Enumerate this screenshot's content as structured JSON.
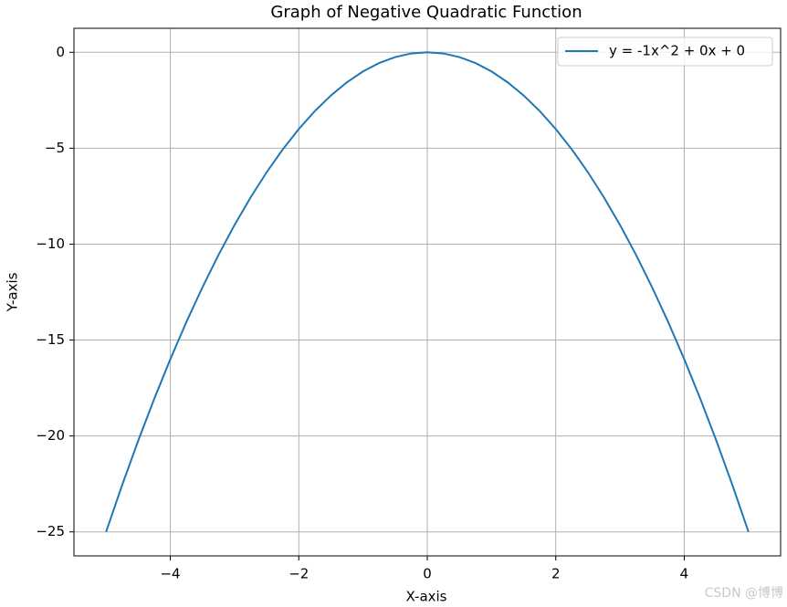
{
  "chart_data": {
    "type": "line",
    "title": "Graph of Negative Quadratic Function",
    "x_label": "X-axis",
    "y_label": "Y-axis",
    "x": [
      -5,
      -4.75,
      -4.5,
      -4.25,
      -4,
      -3.75,
      -3.5,
      -3.25,
      -3,
      -2.75,
      -2.5,
      -2.25,
      -2,
      -1.75,
      -1.5,
      -1.25,
      -1,
      -0.75,
      -0.5,
      -0.25,
      0,
      0.25,
      0.5,
      0.75,
      1,
      1.25,
      1.5,
      1.75,
      2,
      2.25,
      2.5,
      2.75,
      3,
      3.25,
      3.5,
      3.75,
      4,
      4.25,
      4.5,
      4.75,
      5
    ],
    "series": [
      {
        "name": "y = -1x^2 + 0x + 0",
        "color": "#1f77b4",
        "values": [
          -25,
          -22.5625,
          -20.25,
          -18.0625,
          -16,
          -14.0625,
          -12.25,
          -10.5625,
          -9,
          -7.5625,
          -6.25,
          -5.0625,
          -4,
          -3.0625,
          -2.25,
          -1.5625,
          -1,
          -0.5625,
          -0.25,
          -0.0625,
          0,
          -0.0625,
          -0.25,
          -0.5625,
          -1,
          -1.5625,
          -2.25,
          -3.0625,
          -4,
          -5.0625,
          -6.25,
          -7.5625,
          -9,
          -10.5625,
          -12.25,
          -14.0625,
          -16,
          -18.0625,
          -20.25,
          -22.5625,
          -25
        ]
      }
    ],
    "xlim": [
      -5.5,
      5.5
    ],
    "ylim": [
      -26.25,
      1.25
    ],
    "xticks": [
      {
        "value": -4,
        "label": "−4"
      },
      {
        "value": -2,
        "label": "−2"
      },
      0,
      2,
      4
    ],
    "yticks": [
      {
        "value": -25,
        "label": "−25"
      },
      {
        "value": -20,
        "label": "−20"
      },
      {
        "value": -15,
        "label": "−15"
      },
      {
        "value": -10,
        "label": "−10"
      },
      {
        "value": -5,
        "label": "−5"
      },
      0
    ],
    "grid": true,
    "legend": "upper right",
    "watermark": "CSDN @博博"
  }
}
